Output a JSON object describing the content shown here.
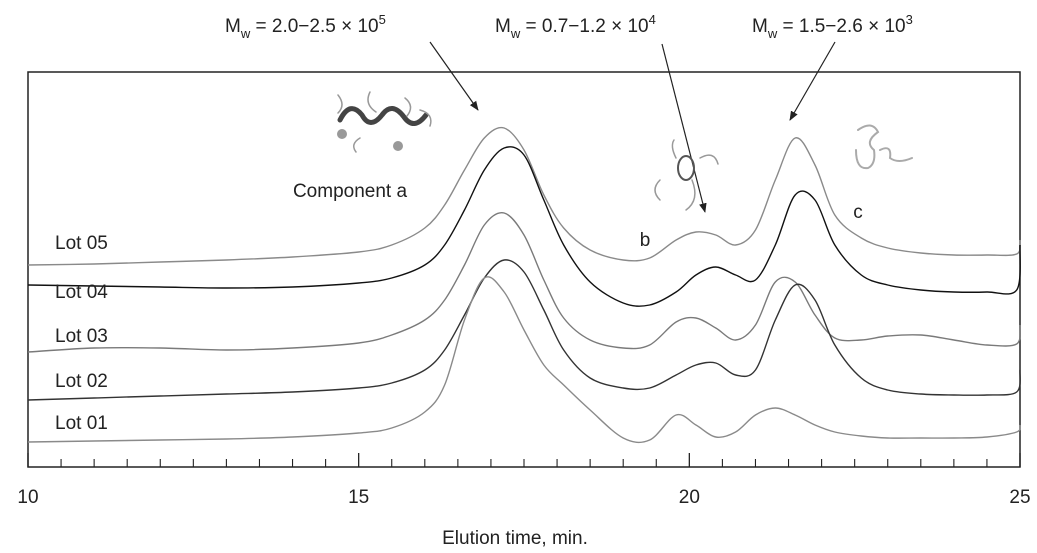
{
  "chart_data": {
    "type": "line",
    "x_label": "Elution time, min.",
    "xlim": [
      10,
      25
    ],
    "xticks": [
      10,
      15,
      20,
      25
    ],
    "xminor_ticks": [
      10.5,
      11,
      11.5,
      12,
      12.5,
      13,
      13.5,
      14,
      14.5,
      15.5,
      16,
      16.5,
      17,
      17.5,
      18,
      18.5,
      19,
      19.5,
      20.5,
      21,
      21.5,
      22,
      22.5,
      23,
      23.5,
      24,
      24.5
    ],
    "ylim": [
      0,
      395
    ],
    "x": [
      10,
      11,
      12,
      13,
      14,
      15,
      15.5,
      16,
      16.3,
      16.6,
      16.9,
      17.2,
      17.5,
      17.8,
      18.1,
      18.5,
      19,
      19.4,
      19.8,
      20.1,
      20.4,
      20.7,
      21,
      21.3,
      21.6,
      21.9,
      22.2,
      22.6,
      23,
      23.5,
      24,
      24.5,
      24.95,
      25
    ],
    "series": [
      {
        "name": "Lot 05",
        "color": "#8a8a8a",
        "values": [
          202,
          203,
          205,
          207,
          210,
          215,
          222,
          239,
          262,
          297,
          329,
          339,
          317,
          272,
          239,
          217,
          207,
          209,
          227,
          235,
          232,
          222,
          237,
          287,
          329,
          302,
          252,
          229,
          219,
          214,
          212,
          212,
          213,
          227
        ]
      },
      {
        "name": "Lot 04",
        "color": "#111111",
        "values": [
          182,
          181,
          180,
          179,
          180,
          184,
          189,
          202,
          222,
          257,
          297,
          319,
          312,
          267,
          222,
          185,
          164,
          162,
          175,
          192,
          200,
          192,
          187,
          222,
          272,
          267,
          222,
          192,
          182,
          177,
          175,
          175,
          177,
          222
        ]
      },
      {
        "name": "Lot 03",
        "color": "#7a7a7a",
        "values": [
          115,
          119,
          119,
          117,
          119,
          124,
          132,
          147,
          167,
          202,
          242,
          254,
          232,
          187,
          149,
          127,
          119,
          122,
          145,
          149,
          139,
          127,
          142,
          185,
          185,
          152,
          129,
          127,
          131,
          132,
          127,
          122,
          123,
          142
        ]
      },
      {
        "name": "Lot 02",
        "color": "#333333",
        "values": [
          67,
          69,
          71,
          73,
          75,
          79,
          84,
          97,
          117,
          152,
          189,
          207,
          195,
          157,
          117,
          89,
          79,
          79,
          92,
          102,
          104,
          92,
          97,
          147,
          182,
          167,
          122,
          89,
          77,
          73,
          72,
          72,
          75,
          97
        ]
      },
      {
        "name": "Lot 01",
        "color": "#8a8a8a",
        "values": [
          25,
          26,
          27,
          28,
          30,
          34,
          39,
          55,
          82,
          147,
          189,
          175,
          137,
          102,
          82,
          57,
          29,
          27,
          52,
          42,
          30,
          35,
          52,
          59,
          52,
          42,
          35,
          31,
          29,
          29,
          29,
          30,
          35,
          42
        ]
      }
    ],
    "annotations": [
      "Component a",
      "b",
      "c"
    ],
    "mw_labels": [
      {
        "main": "M",
        "sub": "w",
        "rest": " = 2.0−2.5 × 10",
        "sup": "5"
      },
      {
        "main": "M",
        "sub": "w",
        "rest": " = 0.7−1.2 × 10",
        "sup": "4"
      },
      {
        "main": "M",
        "sub": "w",
        "rest": " = 1.5−2.6 × 10",
        "sup": "3"
      }
    ]
  }
}
